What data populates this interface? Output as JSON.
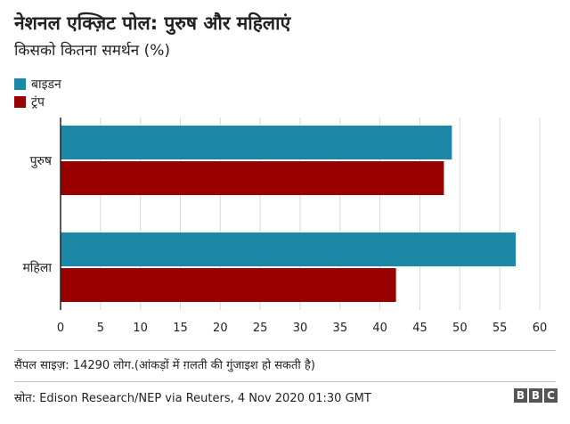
{
  "colors": {
    "biden": "#1d87a8",
    "trump": "#990000"
  },
  "chart_data": {
    "type": "bar",
    "orientation": "horizontal",
    "title": "नेशनल एक्ज़िट पोल: पुरुष और महिलाएं",
    "subtitle": "किसको कितना समर्थन (%)",
    "categories": [
      "पुरुष",
      "महिला"
    ],
    "series": [
      {
        "name": "बाइडन",
        "color": "#1d87a8",
        "values": [
          49,
          57
        ]
      },
      {
        "name": "ट्रंप",
        "color": "#990000",
        "values": [
          48,
          42
        ]
      }
    ],
    "xlim": [
      0,
      60
    ],
    "xticks": [
      "0",
      "5",
      "10",
      "15",
      "20",
      "25",
      "30",
      "35",
      "40",
      "45",
      "50",
      "55",
      "60"
    ],
    "grid": true,
    "legend": "top-left"
  },
  "footer": {
    "note": "सैंपल साइज़: 14290 लोग.(आंकड़ों में ग़लती की गुंजाइश हो सकती है)",
    "source": "स्रोत: Edison Research/NEP via Reuters, 4 Nov 2020 01:30 GMT",
    "logo": [
      "B",
      "B",
      "C"
    ]
  }
}
